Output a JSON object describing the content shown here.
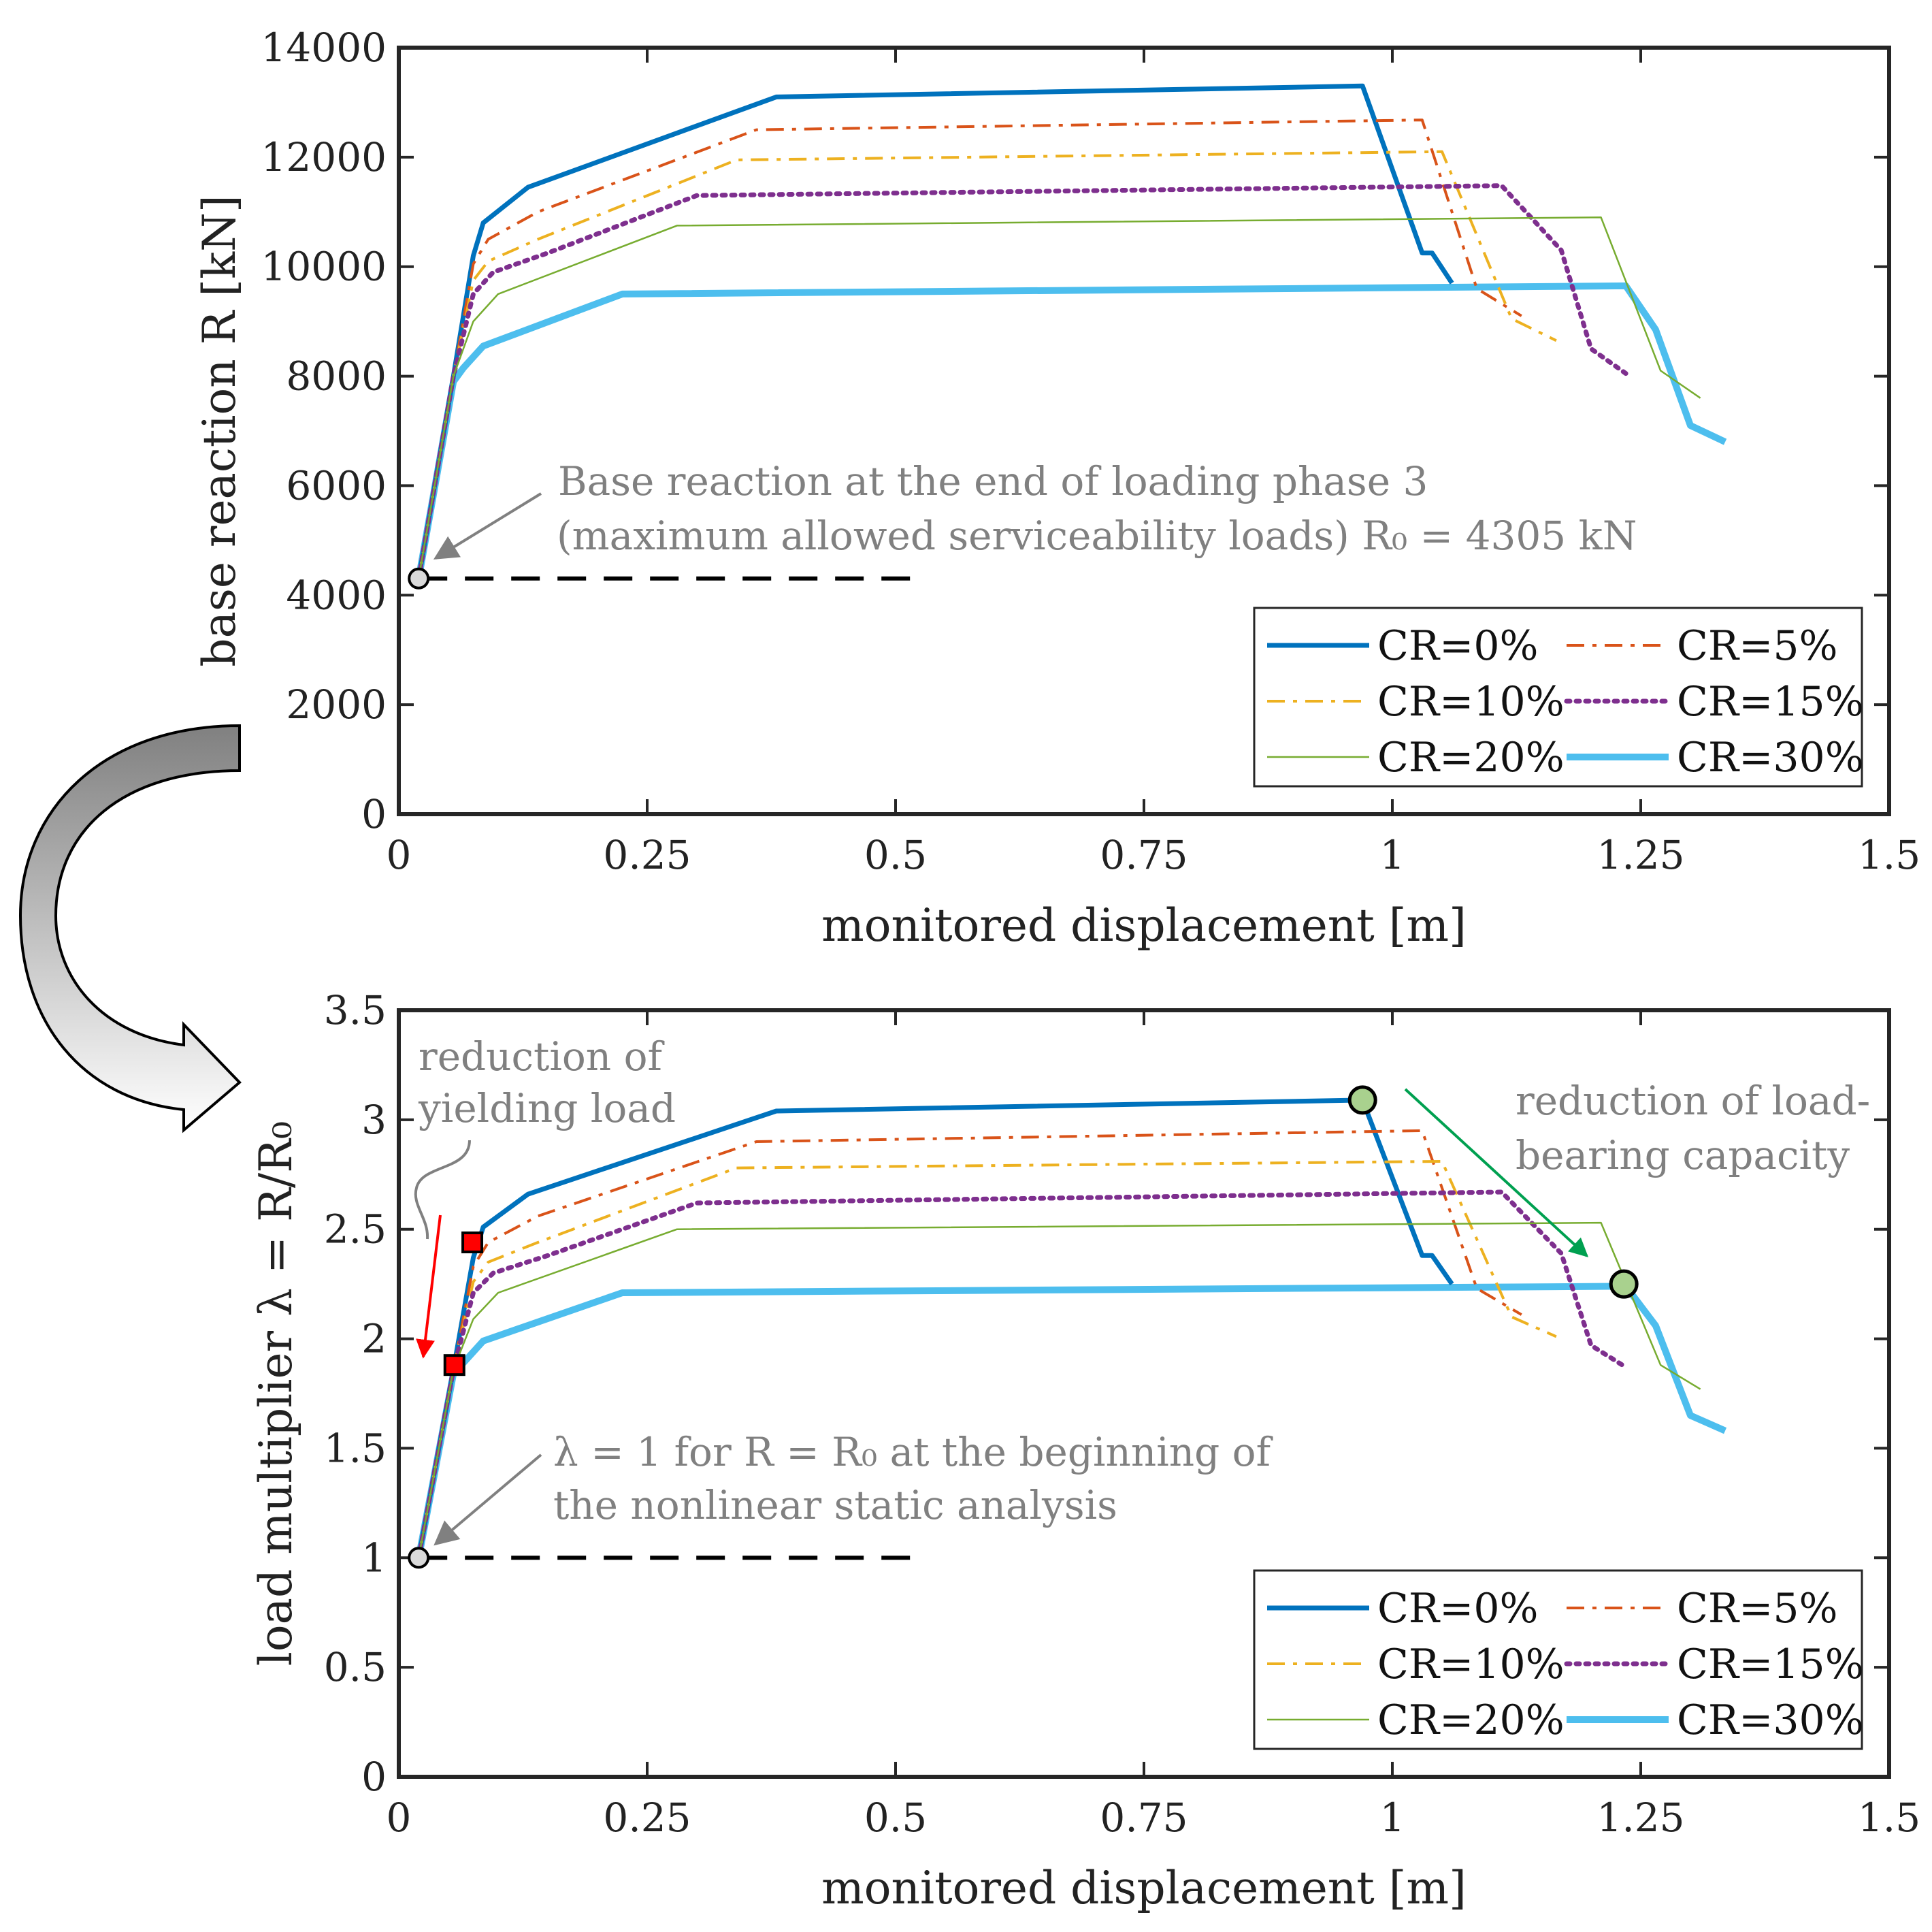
{
  "chart_data": [
    {
      "type": "line",
      "xlabel": "monitored displacement [m]",
      "ylabel": "base reaction R [kN]",
      "xlim": [
        0,
        1.5
      ],
      "ylim": [
        0,
        14000
      ],
      "xticks": [
        "0",
        "0.25",
        "0.5",
        "0.75",
        "1",
        "1.25",
        "1.5"
      ],
      "yticks": [
        "0",
        "2000",
        "4000",
        "6000",
        "8000",
        "10000",
        "12000",
        "14000"
      ],
      "grid": false,
      "legend_position": "bottom-right",
      "annotation": {
        "line1": "Base reaction at the end of loading phase 3",
        "line2": "(maximum allowed serviceability loads) R₀ = 4305 kN",
        "point": [
          0.02,
          4305
        ],
        "dashed_to_x": 0.53
      },
      "series": [
        {
          "name": "CR=0%",
          "color": "#0072BD",
          "dash": "solid",
          "width": 7,
          "x": [
            0.02,
            0.055,
            0.075,
            0.085,
            0.13,
            0.38,
            0.97,
            1.03,
            1.04,
            1.06
          ],
          "y": [
            4305,
            8000,
            10200,
            10800,
            11450,
            13100,
            13300,
            10250,
            10250,
            9700
          ]
        },
        {
          "name": "CR=5%",
          "color": "#D95319",
          "dash": "dashdot",
          "width": 4,
          "x": [
            0.02,
            0.055,
            0.075,
            0.09,
            0.14,
            0.36,
            1.03,
            1.085,
            1.13
          ],
          "y": [
            4305,
            8000,
            10050,
            10500,
            11000,
            12500,
            12680,
            9600,
            9100
          ]
        },
        {
          "name": "CR=10%",
          "color": "#EDB120",
          "dash": "dashdot",
          "width": 4,
          "x": [
            0.02,
            0.055,
            0.075,
            0.09,
            0.14,
            0.34,
            1.05,
            1.12,
            1.165
          ],
          "y": [
            4305,
            8000,
            9750,
            10100,
            10500,
            11950,
            12100,
            9050,
            8650
          ]
        },
        {
          "name": "CR=15%",
          "color": "#7E2F8E",
          "dash": "dotted",
          "width": 7,
          "x": [
            0.02,
            0.055,
            0.075,
            0.095,
            0.15,
            0.3,
            1.11,
            1.17,
            1.2,
            1.235
          ],
          "y": [
            4305,
            8000,
            9500,
            9900,
            10250,
            11300,
            11480,
            10300,
            8500,
            8050
          ]
        },
        {
          "name": "CR=20%",
          "color": "#77AC30",
          "dash": "solid",
          "width": 2.5,
          "x": [
            0.02,
            0.055,
            0.075,
            0.1,
            0.28,
            1.21,
            1.27,
            1.31
          ],
          "y": [
            4305,
            8000,
            9000,
            9500,
            10750,
            10900,
            8100,
            7600
          ]
        },
        {
          "name": "CR=30%",
          "color": "#4DBEEE",
          "dash": "solid",
          "width": 10,
          "x": [
            0.02,
            0.055,
            0.065,
            0.085,
            0.225,
            1.235,
            1.265,
            1.3,
            1.335
          ],
          "y": [
            4305,
            7900,
            8150,
            8550,
            9500,
            9650,
            8850,
            7100,
            6800
          ]
        }
      ]
    },
    {
      "type": "line",
      "xlabel": "monitored displacement [m]",
      "ylabel": "load multiplier λ = R/R₀",
      "xlim": [
        0,
        1.5
      ],
      "ylim": [
        0,
        3.5
      ],
      "xticks": [
        "0",
        "0.25",
        "0.5",
        "0.75",
        "1",
        "1.25",
        "1.5"
      ],
      "yticks": [
        "0",
        "0.5",
        "1",
        "1.5",
        "2",
        "2.5",
        "3",
        "3.5"
      ],
      "grid": false,
      "legend_position": "bottom-right",
      "annotations": {
        "lambda_line1": "λ = 1 for R = R₀ at the beginning of",
        "lambda_line2": "the nonlinear static analysis",
        "yield_line1": "reduction of",
        "yield_line2": "yielding load",
        "capacity_line1": "reduction of load-",
        "capacity_line2": "bearing capacity",
        "start_point": [
          0.02,
          1.0
        ],
        "dashed_to_x": 0.53,
        "yield_markers": [
          [
            0.074,
            2.44
          ],
          [
            0.056,
            1.88
          ]
        ],
        "capacity_markers": [
          [
            0.97,
            3.09
          ],
          [
            1.233,
            2.25
          ]
        ]
      },
      "series": [
        {
          "name": "CR=0%",
          "color": "#0072BD",
          "dash": "solid",
          "width": 7,
          "x": [
            0.02,
            0.055,
            0.075,
            0.085,
            0.13,
            0.38,
            0.97,
            1.03,
            1.04,
            1.06
          ],
          "y": [
            1.0,
            1.86,
            2.37,
            2.51,
            2.66,
            3.04,
            3.09,
            2.38,
            2.38,
            2.25
          ]
        },
        {
          "name": "CR=5%",
          "color": "#D95319",
          "dash": "dashdot",
          "width": 4,
          "x": [
            0.02,
            0.055,
            0.075,
            0.09,
            0.14,
            0.36,
            1.03,
            1.085,
            1.13
          ],
          "y": [
            1.0,
            1.86,
            2.33,
            2.44,
            2.56,
            2.9,
            2.95,
            2.23,
            2.11
          ]
        },
        {
          "name": "CR=10%",
          "color": "#EDB120",
          "dash": "dashdot",
          "width": 4,
          "x": [
            0.02,
            0.055,
            0.075,
            0.09,
            0.14,
            0.34,
            1.05,
            1.12,
            1.165
          ],
          "y": [
            1.0,
            1.86,
            2.26,
            2.35,
            2.44,
            2.78,
            2.81,
            2.1,
            2.01
          ]
        },
        {
          "name": "CR=15%",
          "color": "#7E2F8E",
          "dash": "dotted",
          "width": 7,
          "x": [
            0.02,
            0.055,
            0.075,
            0.095,
            0.15,
            0.3,
            1.11,
            1.17,
            1.2,
            1.235
          ],
          "y": [
            1.0,
            1.86,
            2.21,
            2.3,
            2.38,
            2.62,
            2.67,
            2.39,
            1.97,
            1.87
          ]
        },
        {
          "name": "CR=20%",
          "color": "#77AC30",
          "dash": "solid",
          "width": 2.5,
          "x": [
            0.02,
            0.055,
            0.075,
            0.1,
            0.28,
            1.21,
            1.27,
            1.31
          ],
          "y": [
            1.0,
            1.86,
            2.09,
            2.21,
            2.5,
            2.53,
            1.88,
            1.77
          ]
        },
        {
          "name": "CR=30%",
          "color": "#4DBEEE",
          "dash": "solid",
          "width": 10,
          "x": [
            0.02,
            0.055,
            0.065,
            0.085,
            0.225,
            1.235,
            1.265,
            1.3,
            1.335
          ],
          "y": [
            1.0,
            1.84,
            1.89,
            1.99,
            2.21,
            2.24,
            2.06,
            1.65,
            1.58
          ]
        }
      ]
    }
  ]
}
